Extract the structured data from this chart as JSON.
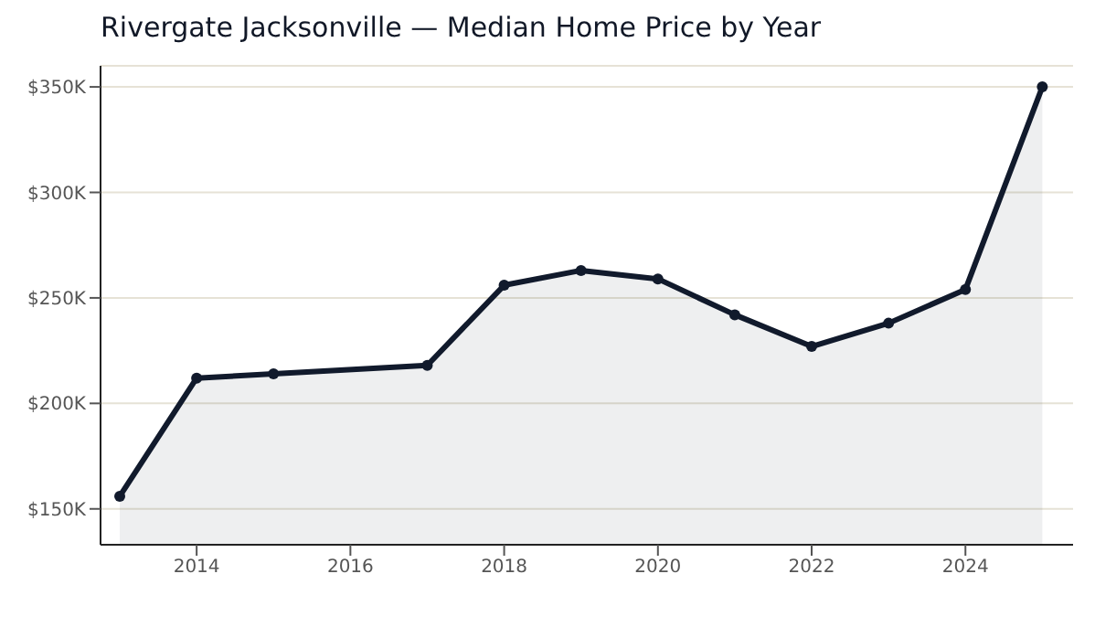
{
  "chart_data": {
    "type": "area",
    "title": "Rivergate Jacksonville — Median Home Price by Year",
    "x": [
      2013,
      2014,
      2015,
      2017,
      2018,
      2019,
      2020,
      2021,
      2022,
      2023,
      2024,
      2025
    ],
    "series": [
      {
        "color": "#111a2c",
        "values": [
          156,
          212,
          214,
          218,
          256,
          263,
          259,
          242,
          227,
          238,
          254,
          350
        ]
      }
    ],
    "xlim": [
      2012.75,
      2025.4
    ],
    "xticks": [
      2014,
      2016,
      2018,
      2020,
      2022,
      2024
    ],
    "ylim": [
      133,
      360
    ],
    "yticks": [
      {
        "value": 150,
        "label": "$150K"
      },
      {
        "value": 200,
        "label": "$200K"
      },
      {
        "value": 250,
        "label": "$250K"
      },
      {
        "value": 300,
        "label": "$300K"
      },
      {
        "value": 350,
        "label": "$350K"
      }
    ],
    "grid": "y",
    "marker": "circle",
    "line_style": "solid"
  }
}
